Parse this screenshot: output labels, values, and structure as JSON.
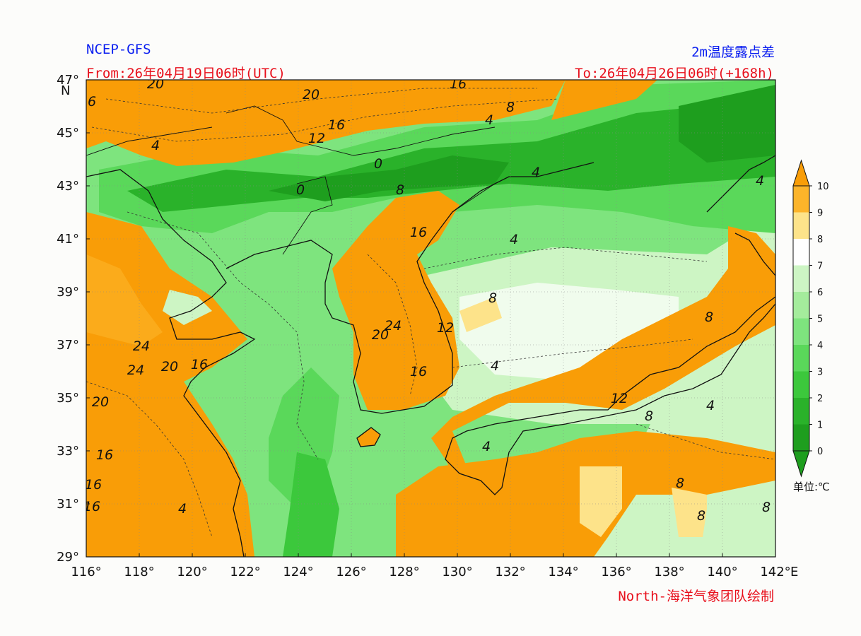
{
  "header": {
    "model": "NCEP-GFS",
    "product": "2m温度露点差",
    "from": "From:26年04月19日06时(UTC)",
    "to": "To:26年04月26日06时(+168h)"
  },
  "footer": {
    "credit": "North-海洋气象团队绘制"
  },
  "map": {
    "lon_range": [
      116,
      142
    ],
    "lat_range": [
      29,
      47
    ],
    "lon_ticks": [
      "116°",
      "118°",
      "120°",
      "122°",
      "124°",
      "126°",
      "128°",
      "130°",
      "132°",
      "134°",
      "136°",
      "138°",
      "140°",
      "142°"
    ],
    "lon_suffix": "E",
    "lat_ticks": [
      "47°",
      "45°",
      "43°",
      "41°",
      "39°",
      "37°",
      "35°",
      "33°",
      "31°",
      "29°"
    ],
    "lat_suffix": "N",
    "contour_labels": [
      "20",
      "20",
      "16",
      "6",
      "16",
      "12",
      "4",
      "8",
      "4",
      "0",
      "0",
      "4",
      "8",
      "16",
      "4",
      "8",
      "24",
      "24",
      "20",
      "24",
      "20",
      "12",
      "4",
      "16",
      "16",
      "20",
      "12",
      "16",
      "16",
      "16",
      "4",
      "4",
      "8",
      "8",
      "4",
      "8",
      "8",
      "8",
      "4"
    ]
  },
  "legend": {
    "unit": "单位:℃",
    "levels": [
      "0",
      "1",
      "2",
      "3",
      "4",
      "5",
      "6",
      "7",
      "8",
      "9",
      "10"
    ],
    "colors": [
      "#1e9e1e",
      "#2ab22a",
      "#3cc83c",
      "#5ad85a",
      "#7ee47e",
      "#a4ec9c",
      "#cdf5c4",
      "#ffffff",
      "#fde38a",
      "#fcb42a",
      "#f99d07"
    ]
  },
  "colors": {
    "dry": "#f99d07",
    "moist": "#1e9e1e",
    "header_blue": "#0a1ef0",
    "header_red": "#e8101c"
  }
}
